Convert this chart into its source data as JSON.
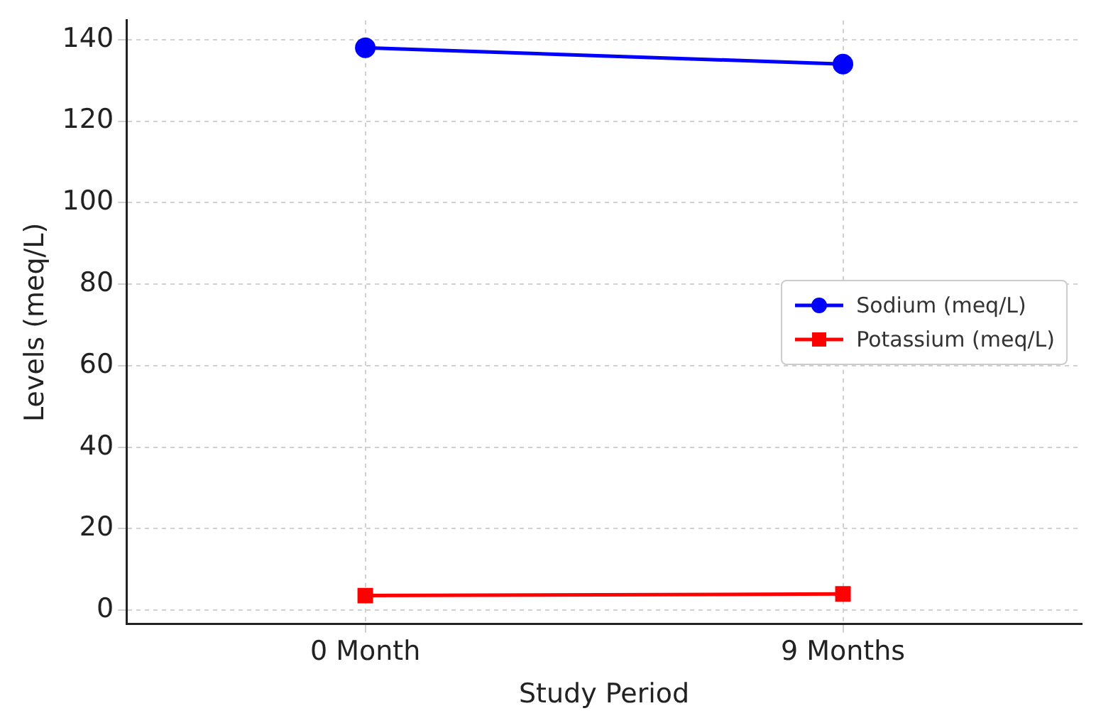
{
  "chart_data": {
    "type": "line",
    "xlabel": "Study Period",
    "ylabel": "Levels (meq/L)",
    "categories": [
      "0 Month",
      "9 Months"
    ],
    "series": [
      {
        "name": "Sodium (meq/L)",
        "color": "#0000ff",
        "marker": "circle",
        "values": [
          138,
          134
        ]
      },
      {
        "name": "Potassium (meq/L)",
        "color": "#ff0000",
        "marker": "square",
        "values": [
          3.6,
          4.0
        ]
      }
    ],
    "ylim": [
      -3.4,
      144.7
    ],
    "yticks": [
      0,
      20,
      40,
      60,
      80,
      100,
      120,
      140
    ],
    "grid": true,
    "legend": "right",
    "line_style": "solid"
  }
}
